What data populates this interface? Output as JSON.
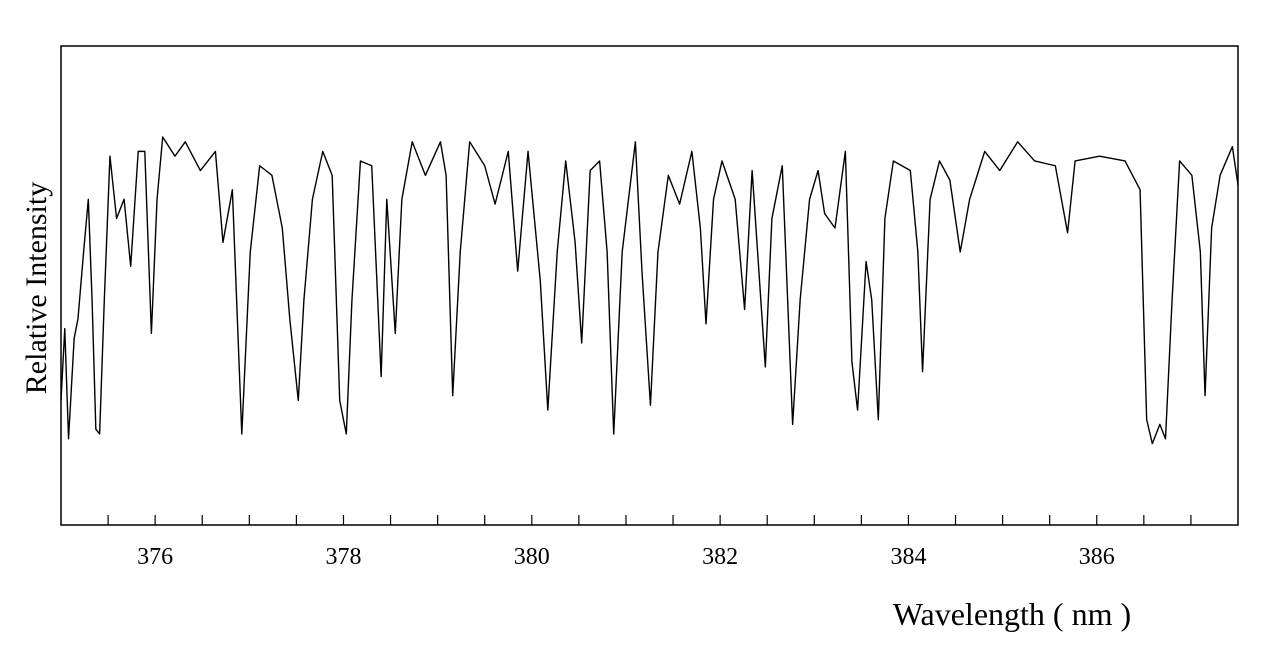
{
  "chart_data": {
    "type": "line",
    "xlabel": "Wavelength ( nm )",
    "ylabel": "Relative Intensity",
    "xlim": [
      375,
      387.5
    ],
    "ylim": [
      0,
      1
    ],
    "xticks": [
      376,
      378,
      380,
      382,
      384,
      386
    ],
    "xminorticks": [
      375.5,
      376,
      376.5,
      377,
      377.5,
      378,
      378.5,
      379,
      379.5,
      380,
      380.5,
      381,
      381.5,
      382,
      382.5,
      383,
      383.5,
      384,
      384.5,
      385,
      385.5,
      386,
      386.5,
      387
    ],
    "series": [
      {
        "color": "#000000",
        "x": [
          375.0,
          375.04,
          375.08,
          375.14,
          375.18,
          375.24,
          375.29,
          375.33,
          375.37,
          375.41,
          375.46,
          375.52,
          375.59,
          375.67,
          375.74,
          375.82,
          375.89,
          375.96,
          376.02,
          376.08,
          376.21,
          376.32,
          376.48,
          376.64,
          376.72,
          376.82,
          376.92,
          377.01,
          377.11,
          377.24,
          377.35,
          377.43,
          377.52,
          377.58,
          377.67,
          377.78,
          377.88,
          377.96,
          378.03,
          378.09,
          378.18,
          378.3,
          378.4,
          378.46,
          378.55,
          378.62,
          378.73,
          378.87,
          379.03,
          379.09,
          379.16,
          379.24,
          379.34,
          379.5,
          379.61,
          379.75,
          379.85,
          379.96,
          380.09,
          380.17,
          380.27,
          380.36,
          380.46,
          380.53,
          380.62,
          380.72,
          380.8,
          380.87,
          380.96,
          381.1,
          381.17,
          381.26,
          381.34,
          381.45,
          381.57,
          381.7,
          381.79,
          381.85,
          381.93,
          382.02,
          382.16,
          382.26,
          382.34,
          382.48,
          382.55,
          382.66,
          382.77,
          382.85,
          382.95,
          383.04,
          383.11,
          383.22,
          383.33,
          383.4,
          383.46,
          383.55,
          383.61,
          383.68,
          383.75,
          383.84,
          384.02,
          384.1,
          384.15,
          384.23,
          384.33,
          384.44,
          384.55,
          384.65,
          384.81,
          384.97,
          385.16,
          385.34,
          385.56,
          385.69,
          385.77,
          386.03,
          386.3,
          386.46,
          386.53,
          386.59,
          386.67,
          386.73,
          386.8,
          386.88,
          387.01,
          387.1,
          387.15,
          387.22,
          387.31,
          387.44,
          387.5
        ],
        "values": [
          0.26,
          0.41,
          0.18,
          0.39,
          0.43,
          0.57,
          0.68,
          0.47,
          0.2,
          0.19,
          0.47,
          0.77,
          0.64,
          0.68,
          0.54,
          0.78,
          0.78,
          0.4,
          0.68,
          0.81,
          0.77,
          0.8,
          0.74,
          0.78,
          0.59,
          0.7,
          0.19,
          0.57,
          0.75,
          0.73,
          0.62,
          0.43,
          0.26,
          0.47,
          0.68,
          0.78,
          0.73,
          0.26,
          0.19,
          0.47,
          0.76,
          0.75,
          0.31,
          0.68,
          0.4,
          0.68,
          0.8,
          0.73,
          0.8,
          0.73,
          0.27,
          0.57,
          0.8,
          0.75,
          0.67,
          0.78,
          0.53,
          0.78,
          0.51,
          0.24,
          0.57,
          0.76,
          0.59,
          0.38,
          0.74,
          0.76,
          0.57,
          0.19,
          0.57,
          0.8,
          0.53,
          0.25,
          0.57,
          0.73,
          0.67,
          0.78,
          0.62,
          0.42,
          0.68,
          0.76,
          0.68,
          0.45,
          0.74,
          0.33,
          0.64,
          0.75,
          0.21,
          0.47,
          0.68,
          0.74,
          0.65,
          0.62,
          0.78,
          0.34,
          0.24,
          0.55,
          0.47,
          0.22,
          0.64,
          0.76,
          0.74,
          0.57,
          0.32,
          0.68,
          0.76,
          0.72,
          0.57,
          0.68,
          0.78,
          0.74,
          0.8,
          0.76,
          0.75,
          0.61,
          0.76,
          0.77,
          0.76,
          0.7,
          0.22,
          0.17,
          0.21,
          0.18,
          0.47,
          0.76,
          0.73,
          0.57,
          0.27,
          0.62,
          0.73,
          0.79,
          0.71
        ]
      }
    ]
  }
}
